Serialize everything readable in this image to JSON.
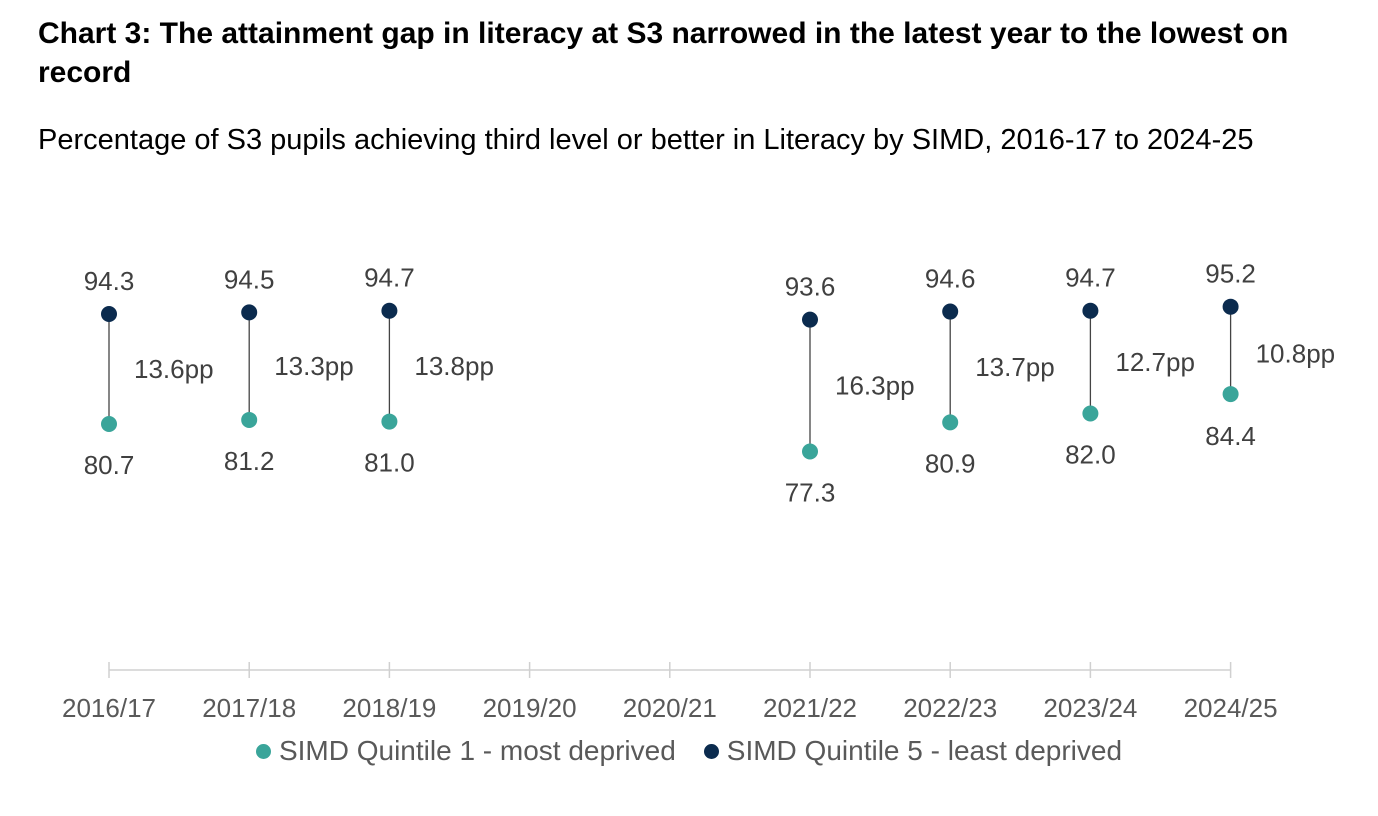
{
  "header": {
    "title": "Chart 3: The attainment gap in literacy at S3 narrowed in the latest year to the lowest on record",
    "subtitle": "Percentage of S3 pupils achieving third level or better in Literacy by SIMD, 2016-17 to 2024-25"
  },
  "colors": {
    "q1": "#3aa59a",
    "q5": "#0b2b4e",
    "connector": "#444444",
    "axis": "#d0d0d0"
  },
  "chart_data": {
    "type": "dumbbell",
    "categories": [
      "2016/17",
      "2017/18",
      "2018/19",
      "2019/20",
      "2020/21",
      "2021/22",
      "2022/23",
      "2023/24",
      "2024/25"
    ],
    "series": [
      {
        "name": "SIMD Quintile 1 - most deprived",
        "values": [
          80.7,
          81.2,
          81.0,
          null,
          null,
          77.3,
          80.9,
          82.0,
          84.4
        ]
      },
      {
        "name": "SIMD Quintile 5 - least deprived",
        "values": [
          94.3,
          94.5,
          94.7,
          null,
          null,
          93.6,
          94.6,
          94.7,
          95.2
        ]
      }
    ],
    "value_labels": {
      "q1": [
        "80.7",
        "81.2",
        "81.0",
        null,
        null,
        "77.3",
        "80.9",
        "82.0",
        "84.4"
      ],
      "q5": [
        "94.3",
        "94.5",
        "94.7",
        null,
        null,
        "93.6",
        "94.6",
        "94.7",
        "95.2"
      ]
    },
    "gap_labels": [
      "13.6pp",
      "13.3pp",
      "13.8pp",
      null,
      null,
      "16.3pp",
      "13.7pp",
      "12.7pp",
      "10.8pp"
    ],
    "legend_position": "bottom",
    "grid": false
  }
}
